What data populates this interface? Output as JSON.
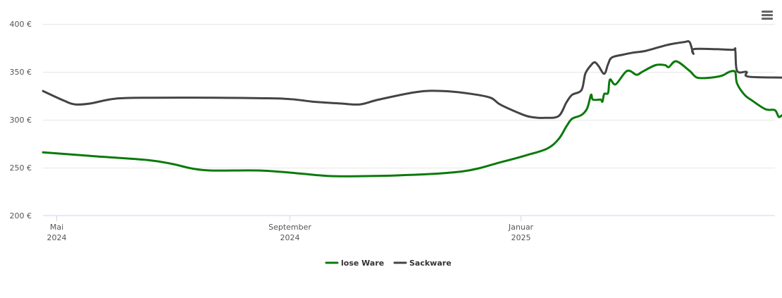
{
  "menu": {
    "icon": "hamburger-menu-icon"
  },
  "chart_data": {
    "type": "line",
    "title": "",
    "xlabel": "",
    "ylabel": "",
    "ylim": [
      200,
      400
    ],
    "y_ticks": [
      {
        "value": 200,
        "label": "200 €"
      },
      {
        "value": 250,
        "label": "250 €"
      },
      {
        "value": 300,
        "label": "300 €"
      },
      {
        "value": 350,
        "label": "350 €"
      },
      {
        "value": 400,
        "label": "400 €"
      }
    ],
    "xlim": [
      "2024-04-24",
      "2025-05-15"
    ],
    "x_ticks": [
      {
        "date": "2024-05-01",
        "month": "Mai",
        "year": "2024"
      },
      {
        "date": "2024-09-01",
        "month": "September",
        "year": "2024"
      },
      {
        "date": "2025-01-01",
        "month": "Januar",
        "year": "2025"
      }
    ],
    "grid": true,
    "legend_position": "bottom-center",
    "series": [
      {
        "name": "lose Ware",
        "color": "#0a7a0a",
        "points": [
          [
            "2024-04-24",
            266
          ],
          [
            "2024-05-21",
            262
          ],
          [
            "2024-06-18",
            258
          ],
          [
            "2024-07-01",
            254
          ],
          [
            "2024-07-12",
            249
          ],
          [
            "2024-07-23",
            247
          ],
          [
            "2024-08-17",
            247
          ],
          [
            "2024-09-06",
            244
          ],
          [
            "2024-09-17",
            242
          ],
          [
            "2024-09-28",
            241
          ],
          [
            "2024-10-29",
            242
          ],
          [
            "2024-12-01",
            246
          ],
          [
            "2024-12-22",
            256
          ],
          [
            "2025-01-04",
            263
          ],
          [
            "2025-01-15",
            270
          ],
          [
            "2025-01-21",
            280
          ],
          [
            "2025-01-25",
            293
          ],
          [
            "2025-01-28",
            301
          ],
          [
            "2025-02-02",
            305
          ],
          [
            "2025-02-05",
            312
          ],
          [
            "2025-02-07",
            326
          ],
          [
            "2025-02-08",
            321
          ],
          [
            "2025-02-12",
            321
          ],
          [
            "2025-02-13",
            319
          ],
          [
            "2025-02-14",
            327
          ],
          [
            "2025-02-16",
            328
          ],
          [
            "2025-02-17",
            342
          ],
          [
            "2025-02-20",
            337
          ],
          [
            "2025-02-26",
            351
          ],
          [
            "2025-03-03",
            347
          ],
          [
            "2025-03-06",
            350
          ],
          [
            "2025-03-13",
            357
          ],
          [
            "2025-03-18",
            357
          ],
          [
            "2025-03-20",
            355
          ],
          [
            "2025-03-24",
            361
          ],
          [
            "2025-03-31",
            351
          ],
          [
            "2025-04-04",
            344
          ],
          [
            "2025-04-11",
            344
          ],
          [
            "2025-04-17",
            346
          ],
          [
            "2025-04-21",
            350
          ],
          [
            "2025-04-24",
            350
          ],
          [
            "2025-04-25",
            338
          ],
          [
            "2025-04-29",
            326
          ],
          [
            "2025-05-03",
            320
          ],
          [
            "2025-05-10",
            311
          ],
          [
            "2025-05-15",
            310
          ],
          [
            "2025-05-17",
            303
          ],
          [
            "2025-05-19",
            305
          ],
          [
            "2025-05-20",
            303
          ]
        ]
      },
      {
        "name": "Sackware",
        "color": "#444444",
        "points": [
          [
            "2024-04-24",
            330
          ],
          [
            "2024-05-05",
            320
          ],
          [
            "2024-05-11",
            316
          ],
          [
            "2024-05-19",
            317
          ],
          [
            "2024-06-01",
            322
          ],
          [
            "2024-06-20",
            323
          ],
          [
            "2024-07-25",
            323
          ],
          [
            "2024-08-29",
            322
          ],
          [
            "2024-09-13",
            319
          ],
          [
            "2024-09-28",
            317
          ],
          [
            "2024-10-08",
            316
          ],
          [
            "2024-10-18",
            321
          ],
          [
            "2024-11-07",
            329
          ],
          [
            "2024-11-21",
            330
          ],
          [
            "2024-12-06",
            327
          ],
          [
            "2024-12-16",
            323
          ],
          [
            "2024-12-21",
            316
          ],
          [
            "2024-12-31",
            307
          ],
          [
            "2025-01-06",
            303
          ],
          [
            "2025-01-14",
            302
          ],
          [
            "2025-01-21",
            304
          ],
          [
            "2025-01-25",
            318
          ],
          [
            "2025-01-28",
            326
          ],
          [
            "2025-02-02",
            331
          ],
          [
            "2025-02-04",
            348
          ],
          [
            "2025-02-07",
            357
          ],
          [
            "2025-02-09",
            360
          ],
          [
            "2025-02-11",
            356
          ],
          [
            "2025-02-14",
            348
          ],
          [
            "2025-02-16",
            358
          ],
          [
            "2025-02-18",
            365
          ],
          [
            "2025-02-24",
            368
          ],
          [
            "2025-03-01",
            370
          ],
          [
            "2025-03-08",
            372
          ],
          [
            "2025-03-19",
            378
          ],
          [
            "2025-03-28",
            381
          ],
          [
            "2025-03-31",
            381
          ],
          [
            "2025-04-02",
            369
          ],
          [
            "2025-04-03",
            374
          ],
          [
            "2025-04-22",
            373
          ],
          [
            "2025-04-24",
            373
          ],
          [
            "2025-04-25",
            351
          ],
          [
            "2025-04-30",
            350
          ],
          [
            "2025-05-01",
            345
          ],
          [
            "2025-05-20",
            344
          ]
        ]
      }
    ]
  }
}
